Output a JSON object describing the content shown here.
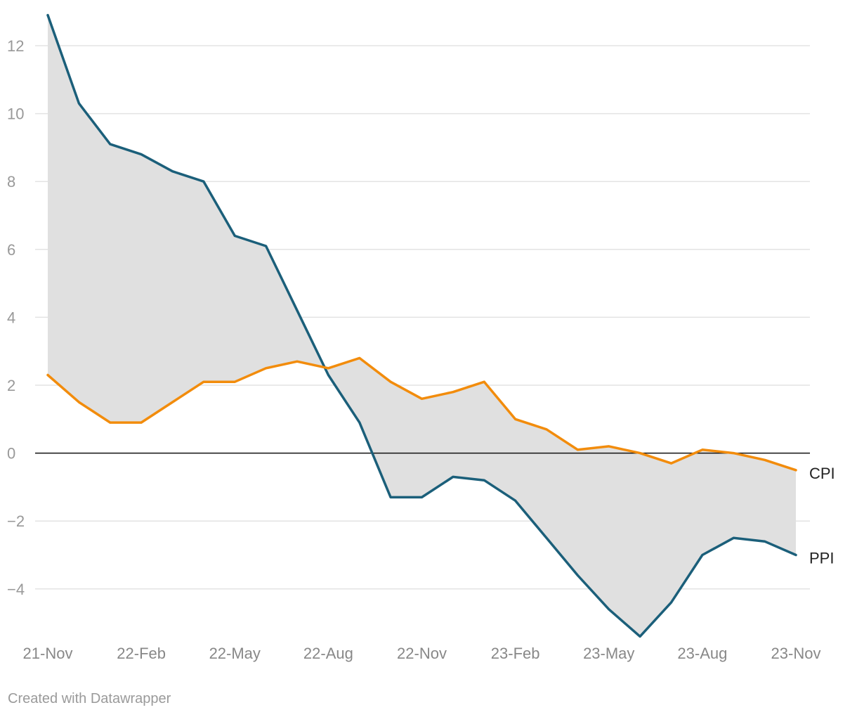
{
  "chart_data": {
    "type": "line",
    "x": [
      "21-Nov",
      "21-Dec",
      "22-Jan",
      "22-Feb",
      "22-Mar",
      "22-Apr",
      "22-May",
      "22-Jun",
      "22-Jul",
      "22-Aug",
      "22-Sep",
      "22-Oct",
      "22-Nov",
      "22-Dec",
      "23-Jan",
      "23-Feb",
      "23-Mar",
      "23-Apr",
      "23-May",
      "23-Jun",
      "23-Jul",
      "23-Aug",
      "23-Sep",
      "23-Oct",
      "23-Nov"
    ],
    "x_tick_labels": [
      "21-Nov",
      "22-Feb",
      "22-May",
      "22-Aug",
      "22-Nov",
      "23-Feb",
      "23-May",
      "23-Aug",
      "23-Nov"
    ],
    "y_ticks": [
      "12",
      "10",
      "8",
      "6",
      "4",
      "2",
      "0",
      "−2",
      "−4"
    ],
    "y_tick_values": [
      12,
      10,
      8,
      6,
      4,
      2,
      0,
      -2,
      -4
    ],
    "ylim": [
      -5.5,
      13
    ],
    "grid": true,
    "range_fill": true,
    "series": [
      {
        "name": "CPI",
        "color": "#f28c0c",
        "values": [
          2.3,
          1.5,
          0.9,
          0.9,
          1.5,
          2.1,
          2.1,
          2.5,
          2.7,
          2.5,
          2.8,
          2.1,
          1.6,
          1.8,
          2.1,
          1.0,
          0.7,
          0.1,
          0.2,
          0.0,
          -0.3,
          0.1,
          0.0,
          -0.2,
          -0.5
        ]
      },
      {
        "name": "PPI",
        "color": "#1b5f7a",
        "values": [
          12.9,
          10.3,
          9.1,
          8.8,
          8.3,
          8.0,
          6.4,
          6.1,
          4.2,
          2.3,
          0.9,
          -1.3,
          -1.3,
          -0.7,
          -0.8,
          -1.4,
          -2.5,
          -3.6,
          -4.6,
          -5.4,
          -4.4,
          -3.0,
          -2.5,
          -2.6,
          -3.0
        ]
      }
    ],
    "labels": {
      "cpi": "CPI",
      "ppi": "PPI"
    }
  },
  "footer": {
    "credit": "Created with Datawrapper"
  },
  "colors": {
    "grid": "#e3e3e3",
    "zero_line": "#111111",
    "fill": "#e0e0e0"
  }
}
